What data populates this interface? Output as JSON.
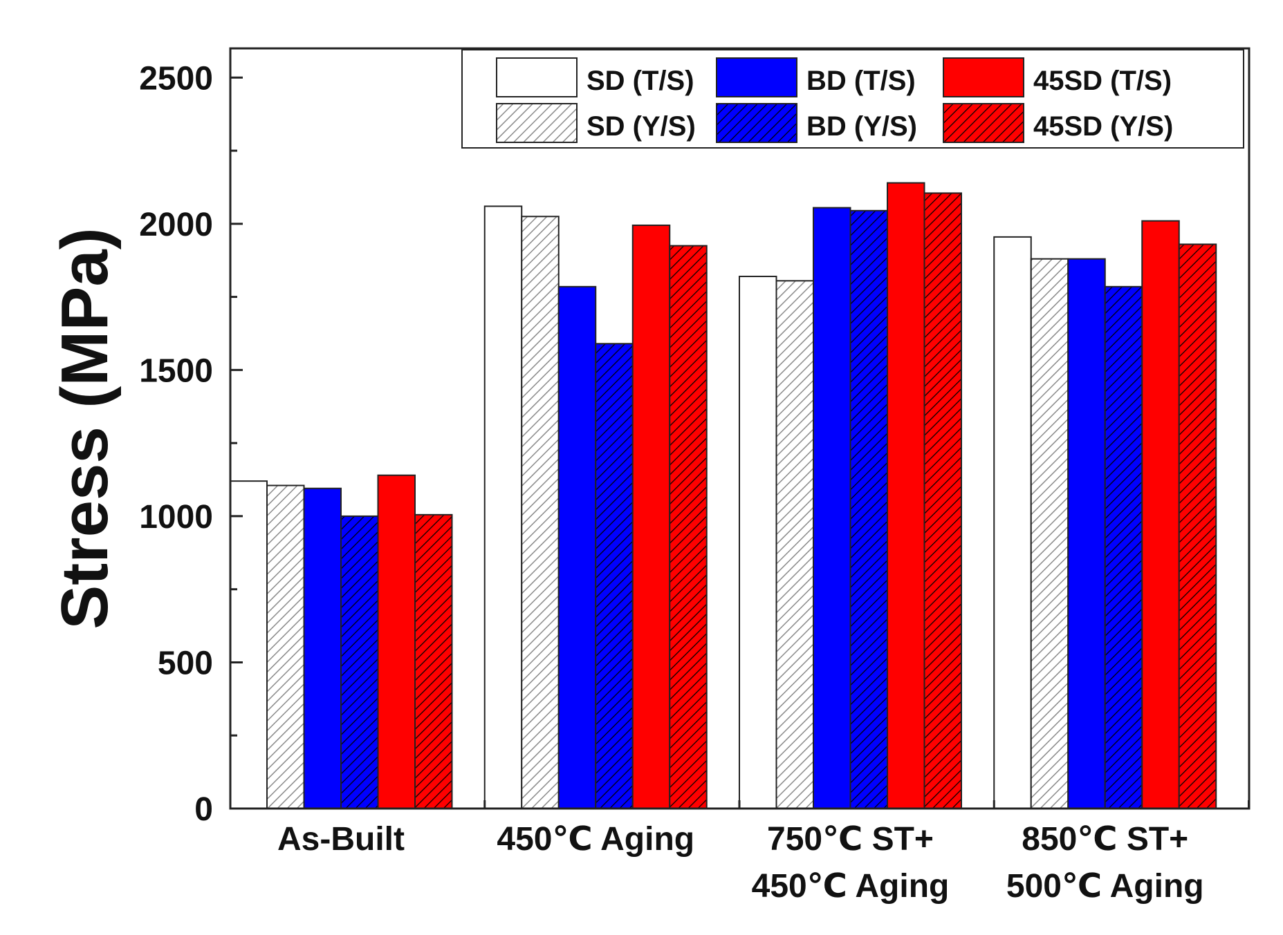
{
  "chart_data": {
    "type": "bar",
    "title": "",
    "xlabel": "",
    "ylabel": "Stress (MPa)",
    "ylim": [
      0,
      2600
    ],
    "yticks": [
      0,
      500,
      1000,
      1500,
      2000,
      2500
    ],
    "categories": [
      [
        "As-Built"
      ],
      [
        "450℃ Aging"
      ],
      [
        "750℃ ST+",
        "450℃ Aging"
      ],
      [
        "850℃ ST+",
        "500℃ Aging"
      ]
    ],
    "series": [
      {
        "name": "SD (T/S)",
        "fill": "#ffffff",
        "hatch": false,
        "values": [
          1120,
          2060,
          1820,
          1955
        ]
      },
      {
        "name": "SD (Y/S)",
        "fill": "#ffffff",
        "hatch": true,
        "hatch_color": "#888888",
        "values": [
          1105,
          2025,
          1805,
          1880
        ]
      },
      {
        "name": "BD (T/S)",
        "fill": "#0000ff",
        "hatch": false,
        "values": [
          1095,
          1785,
          2055,
          1880
        ]
      },
      {
        "name": "BD (Y/S)",
        "fill": "#0000ff",
        "hatch": true,
        "hatch_color": "#000000",
        "values": [
          1000,
          1590,
          2045,
          1785
        ]
      },
      {
        "name": "45SD (T/S)",
        "fill": "#ff0000",
        "hatch": false,
        "values": [
          1140,
          1995,
          2140,
          2010
        ]
      },
      {
        "name": "45SD (Y/S)",
        "fill": "#ff0000",
        "hatch": true,
        "hatch_color": "#000000",
        "values": [
          1005,
          1925,
          2105,
          1930
        ]
      }
    ],
    "legend_position": "top-right",
    "grid": false
  }
}
